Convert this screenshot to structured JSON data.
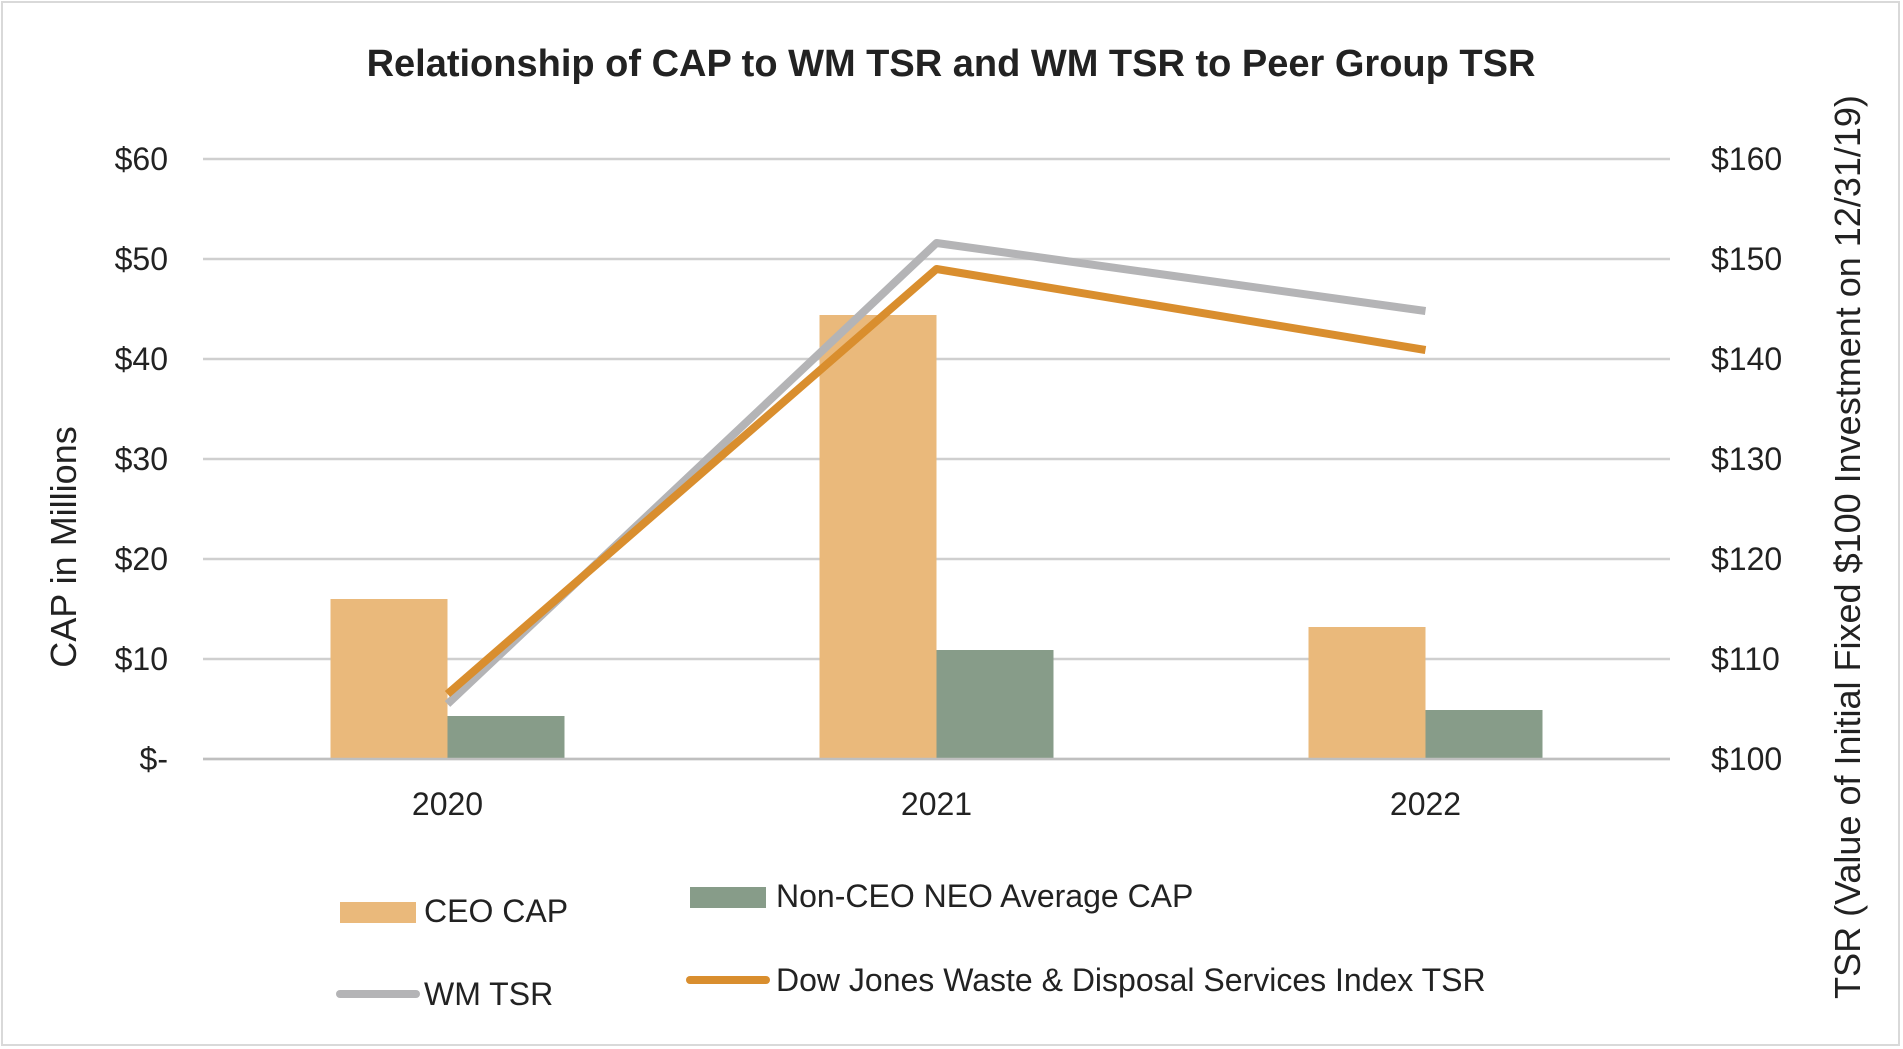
{
  "chart_data": {
    "type": "bar",
    "title": "Relationship of CAP to WM TSR and WM TSR to Peer Group TSR",
    "categories": [
      "2020",
      "2021",
      "2022"
    ],
    "ylabel": "CAP in Millions",
    "y2label": "TSR (Value of Initial Fixed $100 Investment on 12/31/19)",
    "ylim": [
      0,
      60
    ],
    "y2lim": [
      100,
      160
    ],
    "y_ticks": [
      "$-",
      "$10",
      "$20",
      "$30",
      "$40",
      "$50",
      "$60"
    ],
    "y2_ticks": [
      "$100",
      "$110",
      "$120",
      "$130",
      "$140",
      "$150",
      "$160"
    ],
    "grid": true,
    "legend_position": "bottom",
    "series": [
      {
        "name": "CEO CAP",
        "kind": "bar",
        "axis": "left",
        "color": "#EAB97B",
        "values": [
          16.0,
          44.4,
          13.2
        ]
      },
      {
        "name": "Non-CEO NEO Average CAP",
        "kind": "bar",
        "axis": "left",
        "color": "#879C89",
        "values": [
          4.3,
          10.9,
          4.9
        ]
      },
      {
        "name": "WM TSR",
        "kind": "line",
        "axis": "right",
        "color": "#B4B4B6",
        "values": [
          105.5,
          151.6,
          144.8
        ]
      },
      {
        "name": "Dow Jones Waste & Disposal Services Index TSR",
        "kind": "line",
        "axis": "right",
        "color": "#D98E2E",
        "values": [
          106.5,
          149.0,
          140.9
        ]
      }
    ]
  }
}
